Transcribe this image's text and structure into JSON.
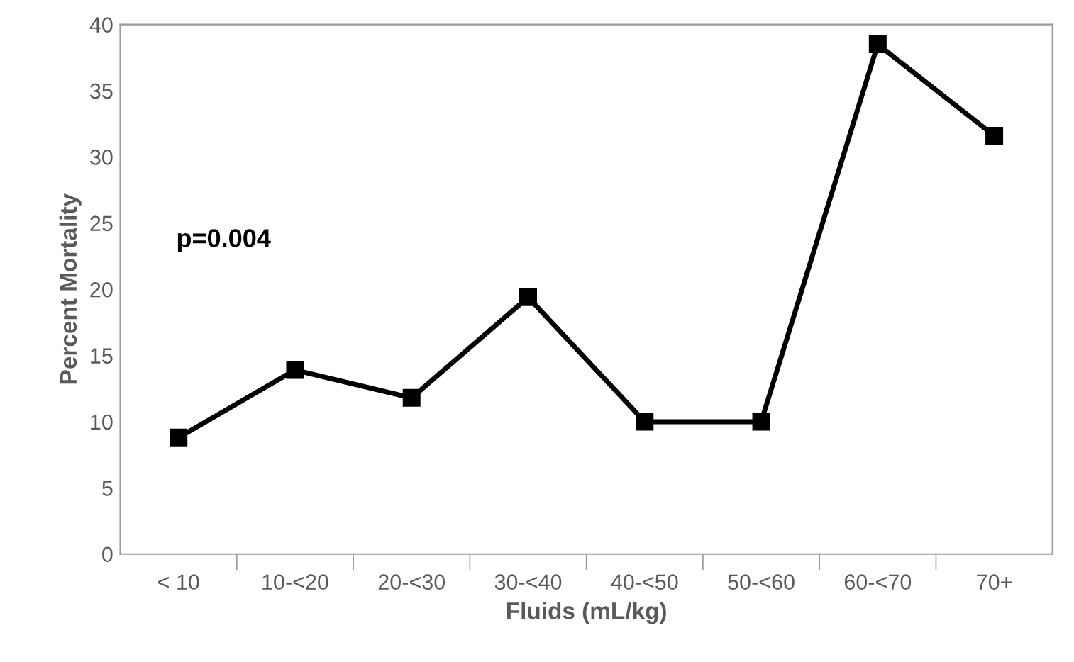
{
  "chart_data": {
    "type": "line",
    "xlabel": "Fluids (mL/kg)",
    "ylabel": "Percent Mortality",
    "categories": [
      "< 10",
      "10-<20",
      "20-<30",
      "30-<40",
      "40-<50",
      "50-<60",
      "60-<70",
      "70+"
    ],
    "series": [
      {
        "color": "#000000",
        "values": [
          8.8,
          13.9,
          11.8,
          19.4,
          10.0,
          10.0,
          38.5,
          31.6
        ]
      }
    ],
    "ylim": [
      0,
      40
    ],
    "yticks": [
      0,
      5,
      10,
      15,
      20,
      25,
      30,
      35,
      40
    ],
    "grid": false,
    "legend": false,
    "marker": "square",
    "line_style": "solid",
    "annotations": [
      "p=0.004"
    ]
  }
}
